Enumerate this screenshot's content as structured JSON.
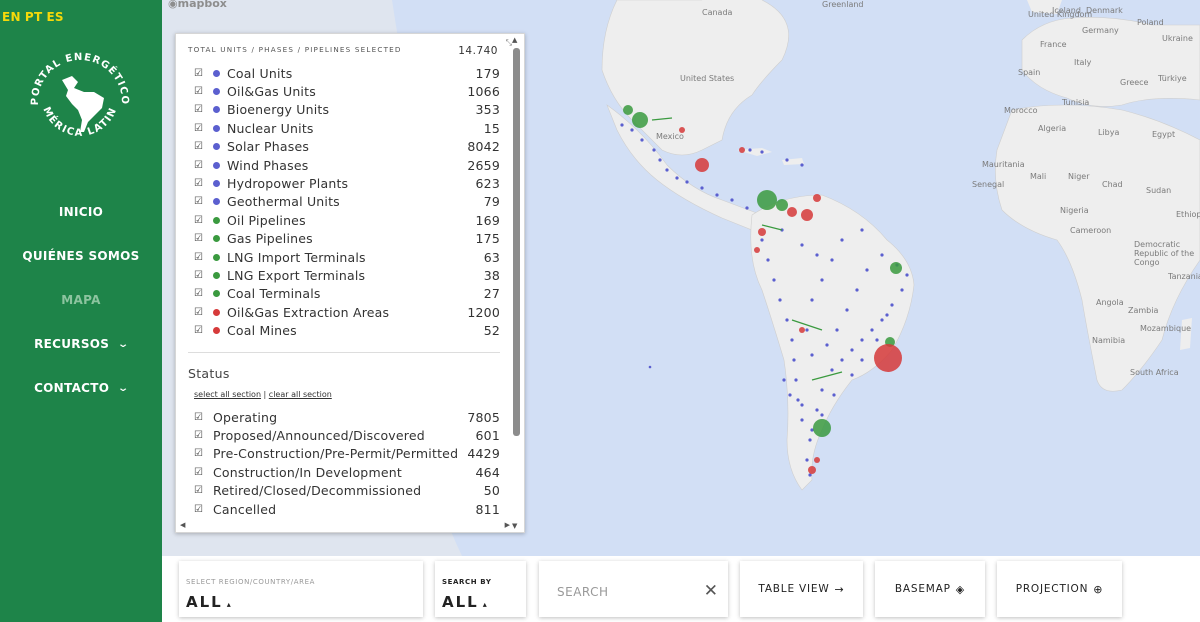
{
  "languages": [
    "EN",
    "PT",
    "ES"
  ],
  "logo": {
    "top_text": "PORTAL ENERGÉTICO",
    "bottom_text": "AMÉRICA LATINA"
  },
  "nav": [
    {
      "label": "INICIO"
    },
    {
      "label": "QUIÉNES SOMOS"
    },
    {
      "label": "MAPA",
      "active": true
    },
    {
      "label": "RECURSOS",
      "dropdown": true
    },
    {
      "label": "CONTACTO",
      "dropdown": true
    }
  ],
  "map": {
    "attribution": "mapbox",
    "labels": [
      "Iceland",
      "Canada",
      "United States",
      "Mexico",
      "Greenland",
      "United Kingdom",
      "Denmark",
      "Poland",
      "Germany",
      "Ukraine",
      "France",
      "Italy",
      "Spain",
      "Türkiye",
      "Greece",
      "Tunisia",
      "Morocco",
      "Algeria",
      "Libya",
      "Egypt",
      "Mauritania",
      "Mali",
      "Niger",
      "Chad",
      "Sudan",
      "Senegal",
      "Nigeria",
      "Ethiop",
      "Cameroon",
      "Democratic Republic of the Congo",
      "Tanzania",
      "Angola",
      "Zambia",
      "Namibia",
      "Mozambique",
      "South Africa"
    ]
  },
  "legend": {
    "title": "TOTAL UNITS / PHASES / PIPELINES SELECTED",
    "total": "14.740",
    "items": [
      {
        "label": "Coal Units",
        "count": "179",
        "color": "#5b5fcf"
      },
      {
        "label": "Oil&Gas Units",
        "count": "1066",
        "color": "#5b5fcf"
      },
      {
        "label": "Bioenergy Units",
        "count": "353",
        "color": "#5b5fcf"
      },
      {
        "label": "Nuclear Units",
        "count": "15",
        "color": "#5b5fcf"
      },
      {
        "label": "Solar Phases",
        "count": "8042",
        "color": "#5b5fcf"
      },
      {
        "label": "Wind Phases",
        "count": "2659",
        "color": "#5b5fcf"
      },
      {
        "label": "Hydropower Plants",
        "count": "623",
        "color": "#5b5fcf"
      },
      {
        "label": "Geothermal Units",
        "count": "79",
        "color": "#5b5fcf"
      },
      {
        "label": "Oil Pipelines",
        "count": "169",
        "color": "#3a9a3f"
      },
      {
        "label": "Gas Pipelines",
        "count": "175",
        "color": "#3a9a3f"
      },
      {
        "label": "LNG Import Terminals",
        "count": "63",
        "color": "#3a9a3f"
      },
      {
        "label": "LNG Export Terminals",
        "count": "38",
        "color": "#3a9a3f"
      },
      {
        "label": "Coal Terminals",
        "count": "27",
        "color": "#3a9a3f"
      },
      {
        "label": "Oil&Gas Extraction Areas",
        "count": "1200",
        "color": "#d63a3a"
      },
      {
        "label": "Coal Mines",
        "count": "52",
        "color": "#d63a3a"
      }
    ],
    "status_title": "Status",
    "select_all": "select all section",
    "clear_all": "clear all section",
    "status": [
      {
        "label": "Operating",
        "count": "7805"
      },
      {
        "label": "Proposed/Announced/Discovered",
        "count": "601"
      },
      {
        "label": "Pre-Construction/Pre-Permit/Permitted",
        "count": "4429"
      },
      {
        "label": "Construction/In Development",
        "count": "464"
      },
      {
        "label": "Retired/Closed/Decommissioned",
        "count": "50"
      },
      {
        "label": "Cancelled",
        "count": "811"
      }
    ]
  },
  "toolbar": {
    "region_label": "SELECT REGION/COUNTRY/AREA",
    "region_value": "ALL",
    "searchby_label": "SEARCH BY",
    "searchby_value": "ALL",
    "search_placeholder": "SEARCH",
    "table_view": "TABLE VIEW",
    "basemap": "BASEMAP",
    "projection": "PROJECTION"
  },
  "colors": {
    "sidebar": "#1e8449",
    "lang": "#f5d90a",
    "asset_blue": "#5b5fcf",
    "asset_green": "#3a9a3f",
    "asset_red": "#d63a3a"
  }
}
